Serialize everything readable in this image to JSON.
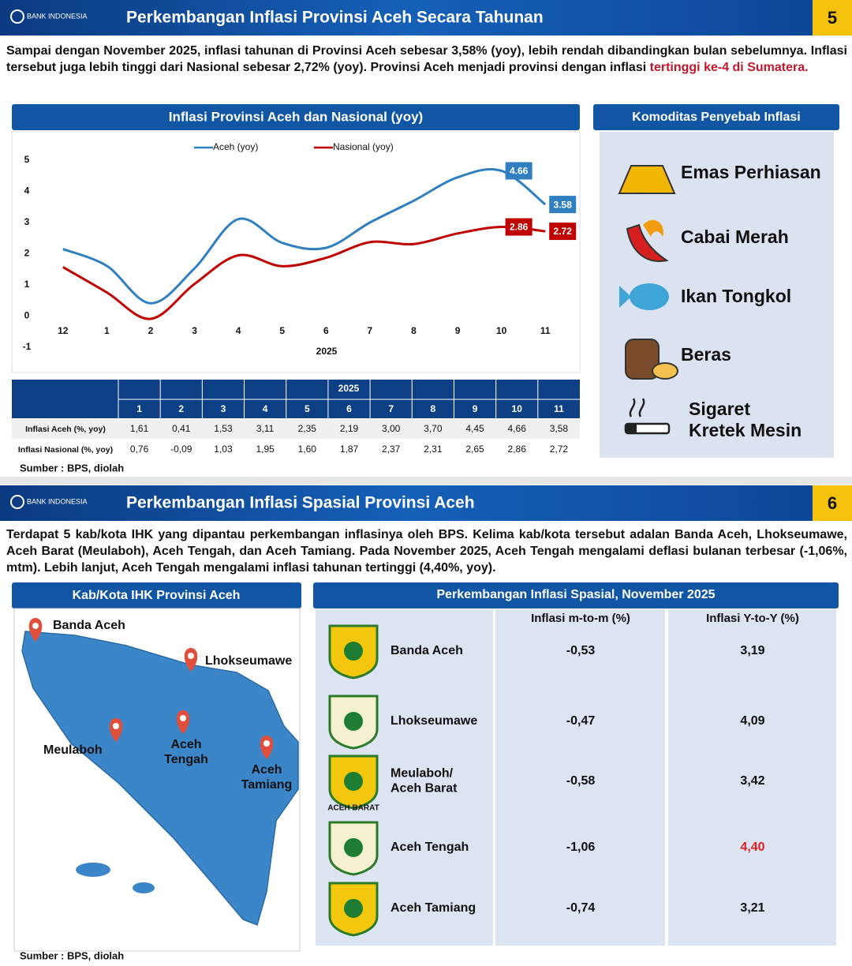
{
  "page5": {
    "brand": "BANK INDONESIA",
    "title": "Perkembangan Inflasi Provinsi Aceh Secara Tahunan",
    "number": "5",
    "text": "Sampai dengan November 2025, inflasi tahunan di Provinsi Aceh sebesar 3,58% (yoy), lebih rendah dibandingkan bulan sebelumnya. Inflasi tersebut juga lebih tinggi dari Nasional sebesar 2,72% (yoy). Provinsi Aceh menjadi provinsi dengan inflasi ",
    "highlight": "tertinggi ke-4 di Sumatera.",
    "chart_title": "Inflasi Provinsi Aceh dan Nasional (yoy)",
    "source": "Sumber : BPS, diolah"
  },
  "chart_data": {
    "type": "line",
    "categories": [
      "12",
      "1",
      "2",
      "3",
      "4",
      "5",
      "6",
      "7",
      "8",
      "9",
      "10",
      "11"
    ],
    "x_label": "2025",
    "ylim": [
      -1,
      5
    ],
    "yticks": [
      -1,
      0,
      1,
      2,
      3,
      4,
      5
    ],
    "series": [
      {
        "name": "Aceh (yoy)",
        "color": "#2f7fc1",
        "values": [
          2.15,
          1.61,
          0.41,
          1.53,
          3.11,
          2.35,
          2.19,
          3.0,
          3.7,
          4.45,
          4.66,
          3.58
        ],
        "value_labels": [
          null,
          null,
          null,
          null,
          null,
          null,
          null,
          null,
          null,
          null,
          "4.66",
          "3.58"
        ]
      },
      {
        "name": "Nasional (yoy)",
        "color": "#c00000",
        "values": [
          1.57,
          0.76,
          -0.09,
          1.03,
          1.95,
          1.6,
          1.87,
          2.37,
          2.31,
          2.65,
          2.86,
          2.72
        ],
        "value_labels": [
          null,
          null,
          null,
          null,
          null,
          null,
          null,
          null,
          null,
          null,
          "2.86",
          "2.72"
        ]
      }
    ]
  },
  "table5": {
    "year": "2025",
    "columns": [
      "1",
      "2",
      "3",
      "4",
      "5",
      "6",
      "7",
      "8",
      "9",
      "10",
      "11"
    ],
    "rows": [
      {
        "label": "Inflasi Aceh (%, yoy)",
        "cells": [
          "1,61",
          "0,41",
          "1,53",
          "3,11",
          "2,35",
          "2,19",
          "3,00",
          "3,70",
          "4,45",
          "4,66",
          "3,58"
        ]
      },
      {
        "label": "Inflasi Nasional (%, yoy)",
        "cells": [
          "0,76",
          "-0,09",
          "1,03",
          "1,95",
          "1,60",
          "1,87",
          "2,37",
          "2,31",
          "2,65",
          "2,86",
          "2,72"
        ]
      }
    ]
  },
  "commodities": {
    "title": "Komoditas Penyebab Inflasi",
    "items": [
      [
        "Emas Perhiasan"
      ],
      [
        "Cabai Merah"
      ],
      [
        "Ikan Tongkol"
      ],
      [
        "Beras"
      ],
      [
        "Sigaret",
        "Kretek Mesin"
      ]
    ]
  },
  "page6": {
    "brand": "BANK INDONESIA",
    "title": "Perkembangan Inflasi Spasial Provinsi Aceh",
    "number": "6",
    "text": "Terdapat 5 kab/kota IHK yang dipantau perkembangan inflasinya oleh BPS. Kelima kab/kota tersebut adalan Banda Aceh, Lhokseumawe, Aceh Barat (Meulaboh), Aceh Tengah, dan Aceh Tamiang. Pada November 2025, Aceh Tengah mengalami deflasi bulanan terbesar (-1,06%, mtm). Lebih lanjut, Aceh Tengah mengalami inflasi tahunan tertinggi (4,40%, yoy).",
    "source": "Sumber : BPS, diolah"
  },
  "map": {
    "title": "Kab/Kota IHK Provinsi Aceh",
    "labels": [
      [
        "Banda Aceh"
      ],
      [
        "Lhokseumawe"
      ],
      [
        "Meulaboh"
      ],
      [
        "Aceh",
        "Tengah"
      ],
      [
        "Aceh",
        "Tamiang"
      ]
    ]
  },
  "spatial": {
    "title": "Perkembangan Inflasi Spasial, November 2025",
    "headers": [
      "Inflasi m-to-m (%)",
      "Inflasi Y-to-Y (%)"
    ],
    "highlight_color": "#e02020",
    "rows": [
      {
        "name": [
          "Banda Aceh"
        ],
        "mtm": "-0,53",
        "yoy": "3,19"
      },
      {
        "name": [
          "Lhokseumawe"
        ],
        "mtm": "-0,47",
        "yoy": "4,09"
      },
      {
        "name": [
          "Meulaboh/",
          "Aceh Barat"
        ],
        "logo_label": "ACEH BARAT",
        "mtm": "-0,58",
        "yoy": "3,42"
      },
      {
        "name": [
          "Aceh Tengah"
        ],
        "mtm": "-1,06",
        "yoy": "4,40",
        "highlight": true
      },
      {
        "name": [
          "Aceh Tamiang"
        ],
        "mtm": "-0,74",
        "yoy": "3,21"
      }
    ]
  }
}
